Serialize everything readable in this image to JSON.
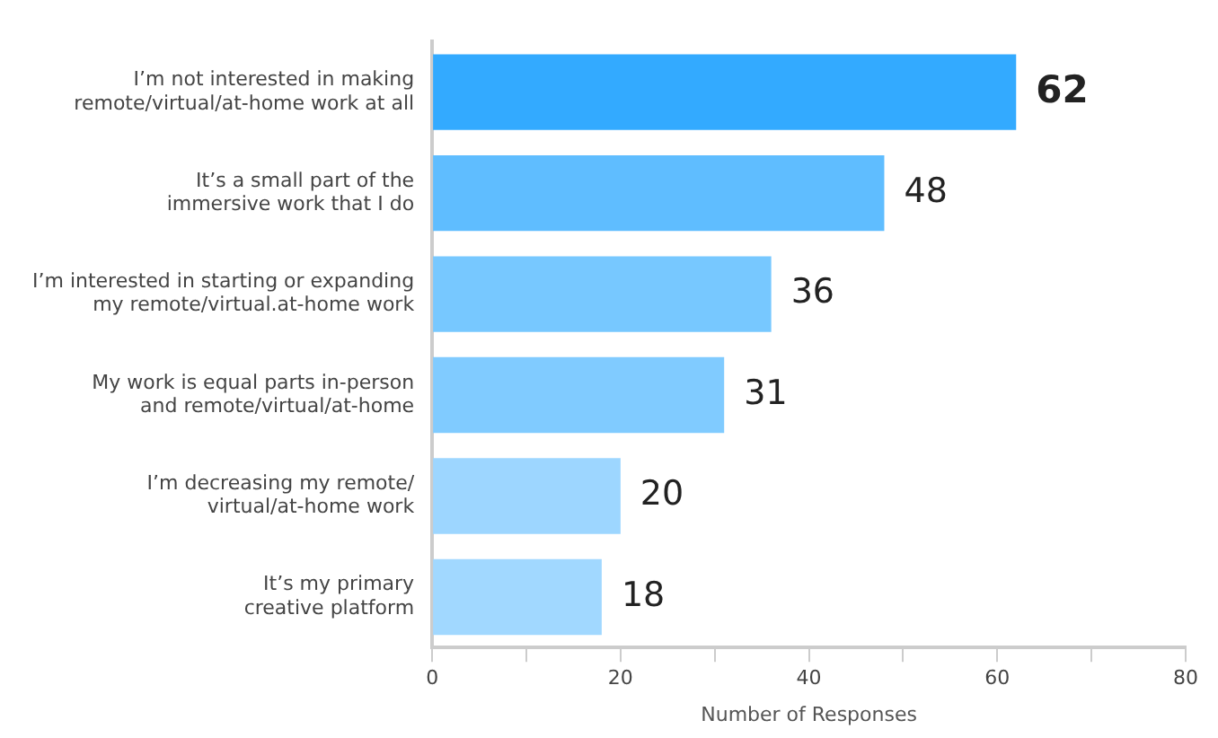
{
  "chart_data": {
    "type": "bar",
    "orientation": "horizontal",
    "categories": [
      "I’m not interested in making\nremote/virtual/at-home work at all",
      "It’s a small part of the\nimmersive work that I do",
      "I’m interested in starting or expanding\nmy remote/virtual.at-home work",
      "My work is equal parts in-person\nand remote/virtual/at-home",
      "I’m decreasing my remote/\nvirtual/at-home work",
      "It’s my primary\ncreative platform"
    ],
    "values": [
      62,
      48,
      36,
      31,
      20,
      18
    ],
    "colors": [
      "#33aaff",
      "#5fbdff",
      "#77c8ff",
      "#80cbff",
      "#9dd6ff",
      "#a1d8ff"
    ],
    "xlim": [
      0,
      80
    ],
    "xticks": [
      0,
      {
        "value": 10,
        "label": null
      },
      20,
      {
        "value": 30,
        "label": null
      },
      40,
      {
        "value": 50,
        "label": null
      },
      60,
      {
        "value": 70,
        "label": null
      },
      80
    ],
    "xlabel": "Number of Responses",
    "data_labels": true,
    "grid": false,
    "legend": false
  }
}
